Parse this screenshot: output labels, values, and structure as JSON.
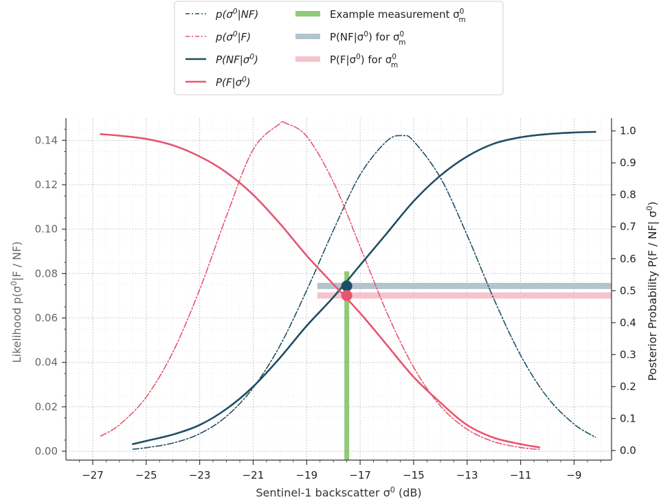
{
  "legend": {
    "col1": [
      {
        "main": "p(σ",
        "sup": "0",
        "tail": "|NF)",
        "style": "nf-dashdot"
      },
      {
        "main": "p(σ",
        "sup": "0",
        "tail": "|F)",
        "style": "f-dashdot"
      },
      {
        "main": "P(NF|σ",
        "sup": "0",
        "tail": ")",
        "style": "nf-solid"
      },
      {
        "main": "P(F|σ",
        "sup": "0",
        "tail": ")",
        "style": "f-solid"
      }
    ],
    "col2": [
      {
        "main": "Example measurement σ",
        "sup": "0",
        "sub": "m",
        "style": "green-band"
      },
      {
        "main": "P(NF|σ",
        "sup": "0",
        "tail": ") for σ",
        "sup2": "0",
        "sub2": "m",
        "style": "nf-band"
      },
      {
        "main": "P(F|σ",
        "sup": "0",
        "tail": ") for σ",
        "sup2": "0",
        "sub2": "m",
        "style": "f-band"
      }
    ]
  },
  "axes": {
    "xlabel": {
      "main": "Sentinel-1 backscatter σ",
      "sup": "0",
      "tail": " (dB)"
    },
    "ylabel_left": {
      "main": "Likelihood p(σ",
      "sup": "0",
      "tail": "|F / NF)"
    },
    "ylabel_right": {
      "main": "Posterior Probability P(F / NF| σ",
      "sup": "0",
      "tail": ")"
    },
    "xticks": [
      "−27",
      "−25",
      "−23",
      "−21",
      "−19",
      "−17",
      "−15",
      "−13",
      "−11",
      "−9"
    ],
    "yticks_left": [
      "0.00",
      "0.02",
      "0.04",
      "0.06",
      "0.08",
      "0.10",
      "0.12",
      "0.14"
    ],
    "yticks_right": [
      "0.0",
      "0.1",
      "0.2",
      "0.3",
      "0.4",
      "0.5",
      "0.6",
      "0.7",
      "0.8",
      "0.9",
      "1.0"
    ]
  },
  "chart_data": {
    "type": "line",
    "xlim": [
      -28,
      -7.6
    ],
    "ylim_left": [
      -0.004,
      0.15
    ],
    "ylim_right": [
      -0.03,
      1.04
    ],
    "xtick_values": [
      -27,
      -25,
      -23,
      -21,
      -19,
      -17,
      -15,
      -13,
      -11,
      -9
    ],
    "ytick_values_left": [
      0.0,
      0.02,
      0.04,
      0.06,
      0.08,
      0.1,
      0.12,
      0.14
    ],
    "ytick_values_right": [
      0.0,
      0.1,
      0.2,
      0.3,
      0.4,
      0.5,
      0.6,
      0.7,
      0.8,
      0.9,
      1.0
    ],
    "grid": true,
    "legend_position": "top-center, outside",
    "colors": {
      "nf": "#1d4e63",
      "f": "#e6546f",
      "green": "#8fca77",
      "nf_band": "#b3c4cd",
      "f_band": "#f6c3cc"
    },
    "series": [
      {
        "style": "nf-dashdot",
        "axis": "left",
        "x": [
          -25.5,
          -25,
          -24,
          -23,
          -22,
          -21,
          -20,
          -19,
          -18,
          -17,
          -16,
          -15.4,
          -15,
          -14,
          -13,
          -12,
          -11,
          -10,
          -9,
          -8.2
        ],
        "y": [
          0.0009,
          0.0016,
          0.0037,
          0.0079,
          0.0157,
          0.0286,
          0.0475,
          0.0724,
          0.0995,
          0.1245,
          0.1397,
          0.1421,
          0.1396,
          0.1232,
          0.0973,
          0.0686,
          0.0432,
          0.0243,
          0.0122,
          0.0063
        ]
      },
      {
        "style": "f-dashdot",
        "axis": "left",
        "x": [
          -26.7,
          -26,
          -25,
          -24,
          -23,
          -22,
          -21,
          -20,
          -19.8,
          -19,
          -18,
          -17,
          -16,
          -15,
          -14,
          -13,
          -12,
          -11,
          -10.3
        ],
        "y": [
          0.0068,
          0.0119,
          0.0244,
          0.0447,
          0.0728,
          0.1058,
          0.1359,
          0.1475,
          0.1478,
          0.1418,
          0.1212,
          0.0921,
          0.0624,
          0.0378,
          0.0204,
          0.0099,
          0.0043,
          0.0017,
          0.0008
        ]
      },
      {
        "style": "nf-solid",
        "axis": "right",
        "x": [
          -25.5,
          -25,
          -24,
          -23,
          -22,
          -21,
          -20,
          -19,
          -18,
          -17,
          -16,
          -15,
          -14,
          -13,
          -12,
          -11,
          -10,
          -9,
          -8.2
        ],
        "y": [
          0.02,
          0.03,
          0.05,
          0.08,
          0.13,
          0.2,
          0.29,
          0.39,
          0.48,
          0.58,
          0.68,
          0.78,
          0.86,
          0.92,
          0.96,
          0.98,
          0.99,
          0.995,
          0.997
        ]
      },
      {
        "style": "f-solid",
        "axis": "right",
        "x": [
          -26.7,
          -26,
          -25,
          -24,
          -23,
          -22,
          -21,
          -20,
          -19,
          -18,
          -17,
          -16,
          -15,
          -14,
          -13,
          -12,
          -11,
          -10.3
        ],
        "y": [
          0.99,
          0.985,
          0.975,
          0.955,
          0.92,
          0.87,
          0.8,
          0.71,
          0.61,
          0.52,
          0.43,
          0.33,
          0.23,
          0.15,
          0.08,
          0.04,
          0.02,
          0.01
        ]
      }
    ],
    "measurement": {
      "x": -17.5,
      "p_nf": 0.515,
      "p_f": 0.485,
      "bar_top_left": 0.081
    }
  }
}
